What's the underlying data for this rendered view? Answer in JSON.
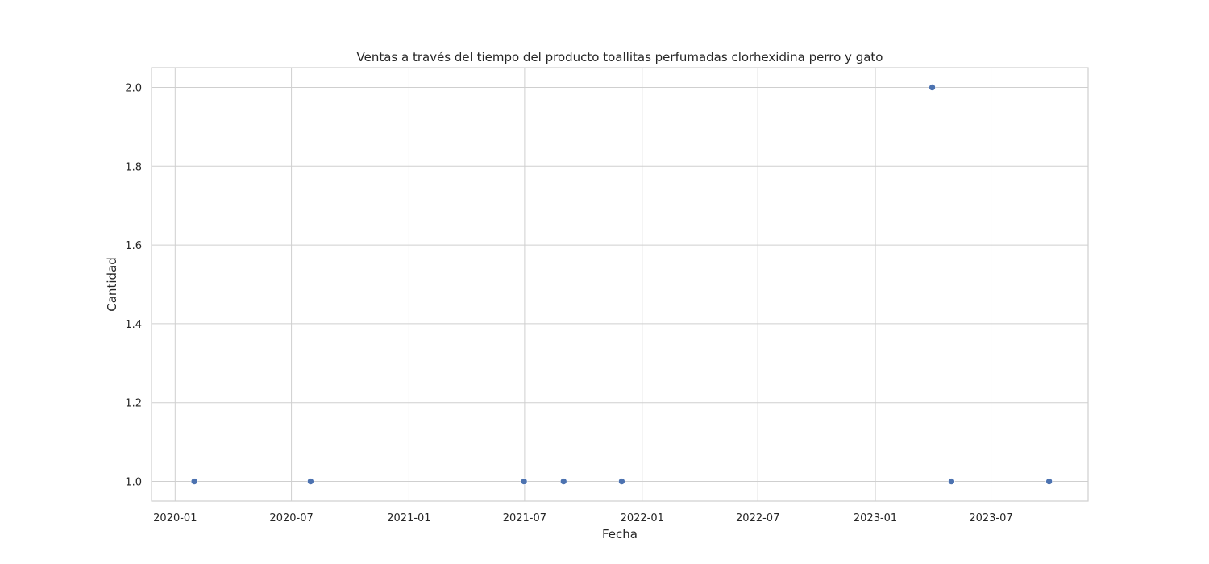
{
  "chart_data": {
    "type": "scatter",
    "title": "Ventas a través del tiempo del producto toallitas perfumadas clorhexidina perro y gato",
    "xlabel": "Fecha",
    "ylabel": "Cantidad",
    "x_axis_type": "date",
    "xlim": [
      "2019-11-25",
      "2023-11-30"
    ],
    "ylim": [
      0.95,
      2.05
    ],
    "x_ticks": [
      {
        "date": "2020-01-01",
        "label": "2020-01"
      },
      {
        "date": "2020-07-01",
        "label": "2020-07"
      },
      {
        "date": "2021-01-01",
        "label": "2021-01"
      },
      {
        "date": "2021-07-01",
        "label": "2021-07"
      },
      {
        "date": "2022-01-01",
        "label": "2022-01"
      },
      {
        "date": "2022-07-01",
        "label": "2022-07"
      },
      {
        "date": "2023-01-01",
        "label": "2023-01"
      },
      {
        "date": "2023-07-01",
        "label": "2023-07"
      }
    ],
    "y_ticks": [
      {
        "value": 1.0,
        "label": "1.0"
      },
      {
        "value": 1.2,
        "label": "1.2"
      },
      {
        "value": 1.4,
        "label": "1.4"
      },
      {
        "value": 1.6,
        "label": "1.6"
      },
      {
        "value": 1.8,
        "label": "1.8"
      },
      {
        "value": 2.0,
        "label": "2.0"
      }
    ],
    "grid": true,
    "marker_color": "#4c72b0",
    "points": [
      {
        "x": "2020-01-31",
        "y": 1
      },
      {
        "x": "2020-07-31",
        "y": 1
      },
      {
        "x": "2021-06-30",
        "y": 1
      },
      {
        "x": "2021-08-31",
        "y": 1
      },
      {
        "x": "2021-11-30",
        "y": 1
      },
      {
        "x": "2023-03-31",
        "y": 2
      },
      {
        "x": "2023-04-30",
        "y": 1
      },
      {
        "x": "2023-09-30",
        "y": 1
      }
    ]
  }
}
